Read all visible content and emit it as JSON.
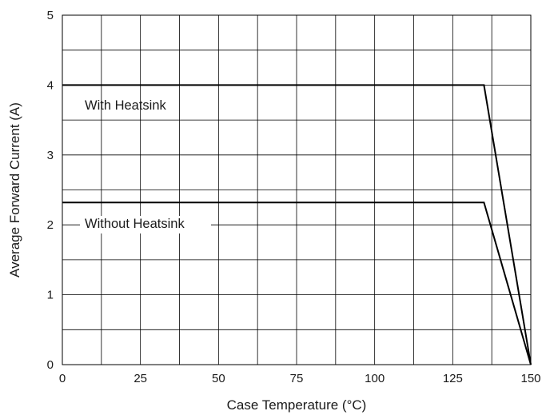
{
  "chart_data": {
    "type": "line",
    "title": "",
    "xlabel": "Case Temperature (°C)",
    "ylabel": "Average Forward Current (A)",
    "xlim": [
      0,
      150
    ],
    "ylim": [
      0,
      5
    ],
    "x_ticks": [
      "0",
      "25",
      "50",
      "75",
      "100",
      "125",
      "150"
    ],
    "y_ticks": [
      "0",
      "1",
      "2",
      "3",
      "4",
      "5"
    ],
    "grid": true,
    "legend": "none",
    "series": [
      {
        "name": "With Heatsink",
        "color": "#000000",
        "points": [
          [
            0,
            4.0
          ],
          [
            135,
            4.0
          ],
          [
            150,
            0
          ]
        ]
      },
      {
        "name": "Without Heatsink",
        "color": "#000000",
        "points": [
          [
            0,
            2.32
          ],
          [
            135,
            2.32
          ],
          [
            150,
            0
          ]
        ]
      }
    ]
  }
}
